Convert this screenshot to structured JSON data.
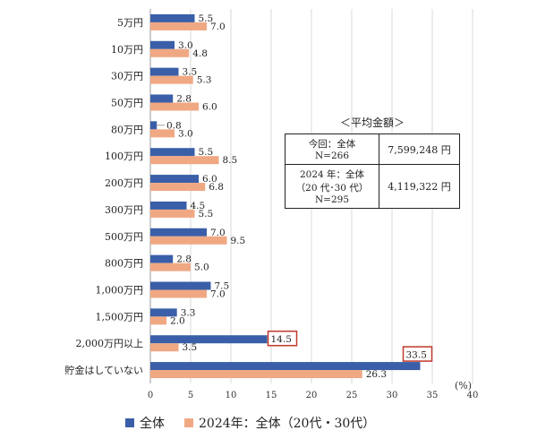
{
  "chart_data": {
    "type": "bar",
    "orientation": "horizontal",
    "categories": [
      "5万円",
      "10万円",
      "30万円",
      "50万円",
      "80万円",
      "100万円",
      "200万円",
      "300万円",
      "500万円",
      "800万円",
      "1,000万円",
      "1,500万円",
      "2,000万円以上",
      "貯金はしていない"
    ],
    "series": [
      {
        "name": "全体",
        "color": "#3a5fa8",
        "values": [
          5.5,
          3.0,
          3.5,
          2.8,
          0.8,
          5.5,
          6.0,
          4.5,
          7.0,
          2.8,
          7.5,
          3.3,
          14.5,
          33.5
        ]
      },
      {
        "name": "2024年：全体（20代・30代）",
        "color": "#f0a883",
        "values": [
          7.0,
          4.8,
          5.3,
          6.0,
          3.0,
          8.5,
          6.8,
          5.5,
          9.5,
          5.0,
          7.0,
          2.0,
          3.5,
          26.3
        ]
      }
    ],
    "value_labels": [
      [
        "5.5",
        "3.0",
        "3.5",
        "2.8",
        "0.8",
        "5.5",
        "6.0",
        "4.5",
        "7.0",
        "2.8",
        "7.5",
        "3.3",
        "14.5",
        "33.5"
      ],
      [
        "7.0",
        "4.8",
        "5.3",
        "6.0",
        "3.0",
        "8.5",
        "6.8",
        "5.5",
        "9.5",
        "5.0",
        "7.0",
        "2.0",
        "3.5",
        "26.3"
      ]
    ],
    "highlighted": [
      {
        "series": 0,
        "category": 12
      },
      {
        "series": 0,
        "category": 13
      }
    ],
    "xlim": [
      0,
      40
    ],
    "xticks": [
      "0",
      "5",
      "10",
      "15",
      "20",
      "25",
      "30",
      "35",
      "40"
    ],
    "xunit": "(%)",
    "grid": true,
    "legend_position": "bottom"
  },
  "summary_box": {
    "title": "＜平均金額＞",
    "rows": [
      {
        "label_lines": [
          "今回：全体",
          "N=266"
        ],
        "amount": "7,599,248 円"
      },
      {
        "label_lines": [
          "2024 年：全体",
          "（20 代･30 代）",
          "N=295"
        ],
        "amount": "4,119,322 円"
      }
    ]
  },
  "legend": [
    {
      "label": "全体",
      "color": "#3a5fa8"
    },
    {
      "label": "2024年：全体（20代・30代）",
      "color": "#f0a883"
    }
  ]
}
